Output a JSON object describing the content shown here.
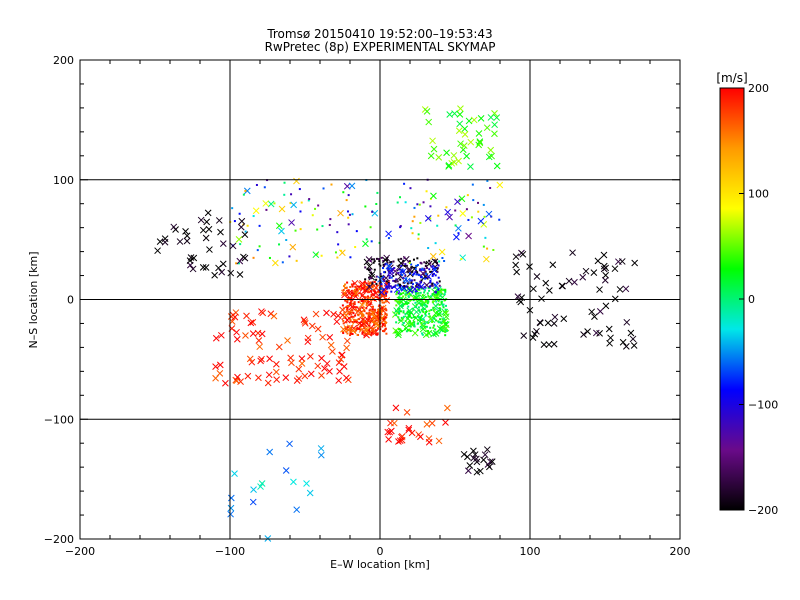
{
  "chart_data": {
    "type": "scatter",
    "title": "Tromsø 20150410 19:52:00–19:53:43",
    "subtitle": "RwPretec (8p) EXPERIMENTAL SKYMAP",
    "xlabel": "E–W location [km]",
    "ylabel": "N–S location [km]",
    "xlim": [
      -200,
      200
    ],
    "ylim": [
      -200,
      200
    ],
    "xticks": [
      -200,
      -100,
      0,
      100,
      200
    ],
    "yticks": [
      -200,
      -100,
      0,
      100,
      200
    ],
    "grid": true,
    "marker_types": [
      "cross (x)",
      "dot (+)"
    ],
    "colorbar": {
      "label": "[m/s]",
      "range": [
        -200,
        200
      ],
      "ticks": [
        -200,
        -100,
        0,
        100,
        200
      ],
      "colormap": [
        "#000000",
        "#6a0a8a",
        "#0000ff",
        "#00e8e8",
        "#00ff00",
        "#ffff00",
        "#ff9a00",
        "#ff0000"
      ],
      "placement": "right"
    },
    "clusters": [
      {
        "region": "center-west core",
        "x_range": [
          -25,
          5
        ],
        "y_range": [
          -30,
          15
        ],
        "velocity": 180,
        "marker": "dot"
      },
      {
        "region": "center-east core",
        "x_range": [
          10,
          45
        ],
        "y_range": [
          -30,
          10
        ],
        "velocity": 20,
        "marker": "dot"
      },
      {
        "region": "north-center band",
        "x_range": [
          -10,
          40
        ],
        "y_range": [
          10,
          35
        ],
        "velocity": -180,
        "marker": "dot"
      },
      {
        "region": "blue mix",
        "x_range": [
          0,
          40
        ],
        "y_range": [
          5,
          30
        ],
        "velocity": -90,
        "marker": "dot"
      },
      {
        "region": "upper-middle mixed field",
        "x_range": [
          -100,
          80
        ],
        "y_range": [
          30,
          100
        ],
        "velocity": 0,
        "marker": "dot"
      },
      {
        "region": "north-east green arm",
        "x_range": [
          30,
          80
        ],
        "y_range": [
          110,
          160
        ],
        "velocity": 40,
        "marker": "cross"
      },
      {
        "region": "far-west black group",
        "x_range": [
          -150,
          -90
        ],
        "y_range": [
          20,
          75
        ],
        "velocity": -200,
        "marker": "cross"
      },
      {
        "region": "far-east black group",
        "x_range": [
          90,
          170
        ],
        "y_range": [
          -40,
          40
        ],
        "velocity": -200,
        "marker": "cross"
      },
      {
        "region": "south-west red field",
        "x_range": [
          -110,
          -20
        ],
        "y_range": [
          -70,
          -10
        ],
        "velocity": 190,
        "marker": "cross"
      },
      {
        "region": "south red arm",
        "x_range": [
          5,
          45
        ],
        "y_range": [
          -120,
          -90
        ],
        "velocity": 190,
        "marker": "cross"
      },
      {
        "region": "south-east black arm",
        "x_range": [
          55,
          75
        ],
        "y_range": [
          -145,
          -125
        ],
        "velocity": -200,
        "marker": "cross"
      },
      {
        "region": "south-west sparse cyan",
        "x_range": [
          -100,
          -30
        ],
        "y_range": [
          -200,
          -120
        ],
        "velocity": -40,
        "marker": "cross"
      }
    ]
  }
}
